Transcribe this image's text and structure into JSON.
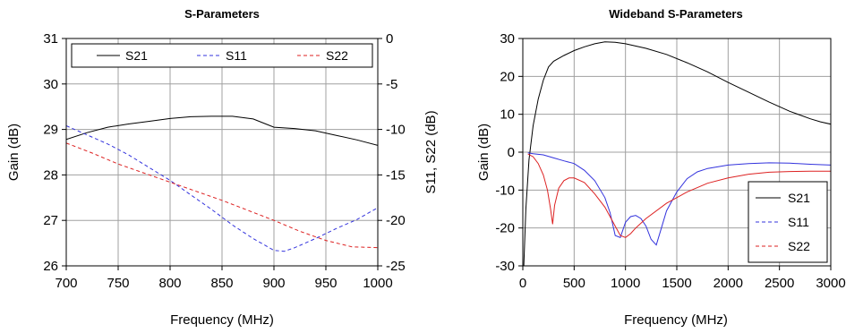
{
  "chart_data": [
    {
      "type": "line",
      "title": "S-Parameters",
      "xlabel": "Frequency (MHz)",
      "ylabel": "Gain (dB)",
      "y2label": "S11, S22 (dB)",
      "xlim": [
        700,
        1000
      ],
      "ylim": [
        26,
        31
      ],
      "y2lim": [
        -25,
        0
      ],
      "xticks": [
        "700",
        "750",
        "800",
        "850",
        "900",
        "950",
        "1000"
      ],
      "yticks": [
        "26",
        "27",
        "28",
        "29",
        "30",
        "31"
      ],
      "y2ticks": [
        "-25",
        "-20",
        "-15",
        "-10",
        "-5",
        "0"
      ],
      "grid": true,
      "legend_position": "top, inside",
      "series": [
        {
          "name": "S21",
          "axis": "left",
          "color": "#000000",
          "dash": "solid",
          "x": [
            700,
            720,
            740,
            760,
            780,
            800,
            820,
            840,
            860,
            880,
            890,
            900,
            920,
            940,
            960,
            980,
            1000
          ],
          "y": [
            28.78,
            28.93,
            29.05,
            29.12,
            29.18,
            29.24,
            29.28,
            29.29,
            29.29,
            29.23,
            29.14,
            29.05,
            29.02,
            28.97,
            28.87,
            28.77,
            28.65
          ]
        },
        {
          "name": "S11",
          "axis": "right",
          "color": "#3333dd",
          "dash": "dashed",
          "x": [
            700,
            720,
            740,
            760,
            780,
            800,
            820,
            840,
            860,
            880,
            900,
            910,
            920,
            940,
            960,
            980,
            1000
          ],
          "y": [
            -9.6,
            -10.6,
            -11.6,
            -12.8,
            -14.2,
            -15.6,
            -17.2,
            -18.8,
            -20.5,
            -22.0,
            -23.3,
            -23.4,
            -23.0,
            -22.0,
            -20.9,
            -19.9,
            -18.6
          ]
        },
        {
          "name": "S22",
          "axis": "right",
          "color": "#dd2222",
          "dash": "dashed",
          "x": [
            700,
            725,
            750,
            775,
            800,
            825,
            850,
            875,
            900,
            925,
            950,
            975,
            1000
          ],
          "y": [
            -11.5,
            -12.6,
            -13.8,
            -14.8,
            -15.8,
            -16.8,
            -17.8,
            -18.9,
            -20.0,
            -21.2,
            -22.2,
            -22.9,
            -23.0
          ]
        }
      ]
    },
    {
      "type": "line",
      "title": "Wideband S-Parameters",
      "xlabel": "Frequency (MHz)",
      "ylabel": "Gain (dB)",
      "xlim": [
        0,
        3000
      ],
      "ylim": [
        -30,
        30
      ],
      "xticks": [
        "0",
        "500",
        "1000",
        "1500",
        "2000",
        "2500",
        "3000"
      ],
      "yticks": [
        "-30",
        "-20",
        "-10",
        "0",
        "10",
        "20",
        "30"
      ],
      "grid": true,
      "legend_position": "bottom-right",
      "series": [
        {
          "name": "S21",
          "color": "#000000",
          "dash": "solid",
          "x": [
            10,
            30,
            60,
            100,
            150,
            200,
            250,
            300,
            400,
            500,
            600,
            700,
            800,
            900,
            1000,
            1200,
            1400,
            1600,
            1800,
            2000,
            2200,
            2400,
            2500,
            2600,
            2700,
            2800,
            2900,
            3000
          ],
          "y": [
            -30,
            -15,
            -2,
            7,
            14,
            19,
            22.5,
            24,
            25.5,
            26.8,
            27.8,
            28.6,
            29.1,
            29,
            28.6,
            27.4,
            25.8,
            23.6,
            21.2,
            18.4,
            15.8,
            13.2,
            12,
            10.8,
            9.8,
            8.8,
            8,
            7.4
          ]
        },
        {
          "name": "S11",
          "color": "#3333dd",
          "dash": "solid",
          "x": [
            50,
            100,
            200,
            300,
            400,
            500,
            600,
            700,
            800,
            850,
            900,
            950,
            1000,
            1050,
            1100,
            1150,
            1200,
            1250,
            1300,
            1350,
            1400,
            1500,
            1600,
            1700,
            1800,
            2000,
            2200,
            2400,
            2600,
            2800,
            3000
          ],
          "y": [
            -0.2,
            -0.4,
            -0.7,
            -1.5,
            -2.3,
            -3.0,
            -4.8,
            -7.5,
            -12,
            -16,
            -22,
            -22.5,
            -18.5,
            -17,
            -16.7,
            -17.5,
            -19.5,
            -23,
            -24.5,
            -20,
            -15.5,
            -10.5,
            -7.0,
            -5.2,
            -4.3,
            -3.4,
            -3.0,
            -2.8,
            -2.9,
            -3.2,
            -3.4
          ]
        },
        {
          "name": "S22",
          "color": "#dd2222",
          "dash": "solid",
          "x": [
            50,
            100,
            150,
            200,
            240,
            270,
            290,
            310,
            350,
            400,
            450,
            500,
            600,
            700,
            800,
            900,
            950,
            1000,
            1050,
            1100,
            1200,
            1400,
            1600,
            1800,
            2000,
            2200,
            2400,
            2600,
            2800,
            3000
          ],
          "y": [
            -0.5,
            -1.2,
            -3,
            -6,
            -10,
            -15,
            -19,
            -14,
            -9.5,
            -7.5,
            -6.8,
            -6.8,
            -8,
            -11,
            -14.5,
            -19.5,
            -22,
            -22.5,
            -21.5,
            -20,
            -17.5,
            -13.5,
            -10.5,
            -8.2,
            -6.8,
            -5.8,
            -5.3,
            -5.1,
            -5.0,
            -5.0
          ]
        }
      ]
    }
  ]
}
